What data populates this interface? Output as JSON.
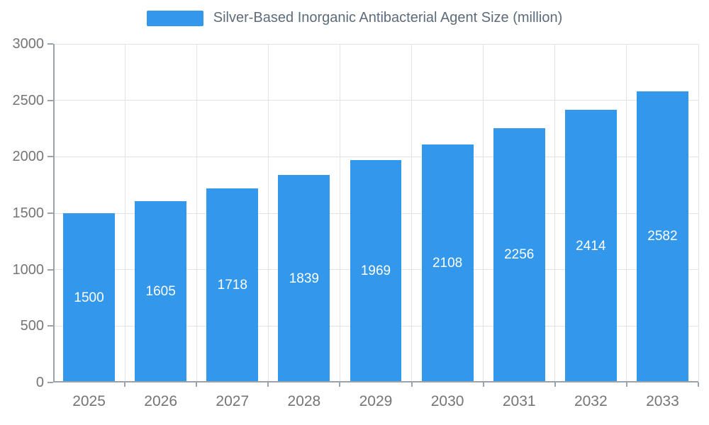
{
  "legend": {
    "title": "Silver-Based Inorganic Antibacterial Agent Size (million)"
  },
  "colors": {
    "bar": "#3398EC",
    "title_text": "#5D6B7A",
    "axis": "#9AA3AB",
    "grid": "#E3E3E3",
    "tick_label": "#757575",
    "value_label": "#FFFFFF"
  },
  "chart_data": {
    "type": "bar",
    "title": "Silver-Based Inorganic Antibacterial Agent Size (million)",
    "categories": [
      "2025",
      "2026",
      "2027",
      "2028",
      "2029",
      "2030",
      "2031",
      "2032",
      "2033"
    ],
    "values": [
      1500,
      1605,
      1718,
      1839,
      1969,
      2108,
      2256,
      2414,
      2582
    ],
    "xlabel": "",
    "ylabel": "",
    "ylim": [
      0,
      3000
    ],
    "yticks": [
      0,
      500,
      1000,
      1500,
      2000,
      2500,
      3000
    ],
    "grid": true,
    "legend_position": "top",
    "value_labels": "inside-center"
  }
}
